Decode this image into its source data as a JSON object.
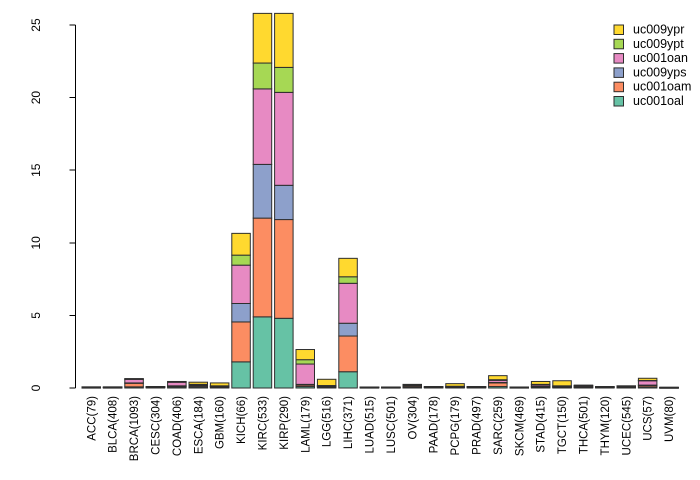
{
  "figure": {
    "background": "#ffffff",
    "bar_border_color": "#2e2e2e",
    "axis_color": "#000000"
  },
  "chart_data": {
    "type": "bar",
    "stacked": true,
    "title": "",
    "xlabel": "",
    "ylabel": "",
    "ylim": [
      0,
      26
    ],
    "yticks": [
      0,
      5,
      10,
      15,
      20,
      25
    ],
    "grid": false,
    "legend_position": "top-right",
    "categories": [
      "ACC(79)",
      "BLCA(408)",
      "BRCA(1093)",
      "CESC(304)",
      "COAD(406)",
      "ESCA(184)",
      "GBM(160)",
      "KICH(66)",
      "KIRC(533)",
      "KIRP(290)",
      "LAML(179)",
      "LGG(516)",
      "LIHC(371)",
      "LUAD(515)",
      "LUSC(501)",
      "OV(304)",
      "PAAD(178)",
      "PCPG(179)",
      "PRAD(497)",
      "SARC(259)",
      "SKCM(469)",
      "STAD(415)",
      "TGCT(150)",
      "THCA(501)",
      "THYM(120)",
      "UCEC(545)",
      "UCS(57)",
      "UVM(80)"
    ],
    "series": [
      {
        "name": "uc001oal",
        "color": "#66C2A5",
        "values": [
          0.02,
          0.02,
          0.08,
          0.03,
          0.08,
          0.08,
          0.05,
          1.8,
          4.9,
          4.8,
          0.1,
          0.05,
          1.12,
          0.02,
          0.02,
          0.05,
          0.03,
          0.03,
          0.03,
          0.1,
          0.02,
          0.05,
          0.04,
          0.04,
          0.03,
          0.03,
          0.08,
          0.01
        ]
      },
      {
        "name": "uc001oam",
        "color": "#FC8D62",
        "values": [
          0.02,
          0.02,
          0.25,
          0.03,
          0.05,
          0.08,
          0.04,
          2.75,
          6.8,
          6.8,
          0.1,
          0.05,
          2.46,
          0.02,
          0.02,
          0.08,
          0.03,
          0.03,
          0.03,
          0.25,
          0.02,
          0.05,
          0.04,
          0.03,
          0.03,
          0.03,
          0.1,
          0.01
        ]
      },
      {
        "name": "uc009yps",
        "color": "#8DA0CB",
        "values": [
          0.01,
          0.01,
          0.02,
          0.01,
          0.02,
          0.02,
          0.01,
          1.27,
          3.7,
          2.36,
          0.05,
          0.02,
          0.88,
          0.01,
          0.01,
          0.02,
          0.01,
          0.01,
          0.01,
          0.03,
          0.01,
          0.02,
          0.01,
          0.01,
          0.01,
          0.01,
          0.02,
          0.01
        ]
      },
      {
        "name": "uc001oan",
        "color": "#E78AC3",
        "values": [
          0.01,
          0.01,
          0.25,
          0.02,
          0.25,
          0.05,
          0.03,
          2.64,
          5.2,
          6.4,
          1.4,
          0.03,
          2.75,
          0.01,
          0.01,
          0.05,
          0.02,
          0.03,
          0.02,
          0.15,
          0.01,
          0.1,
          0.04,
          0.08,
          0.02,
          0.06,
          0.3,
          0.01
        ]
      },
      {
        "name": "uc009ypt",
        "color": "#A6D854",
        "values": [
          0.01,
          0.01,
          0.02,
          0.005,
          0.02,
          0.02,
          0.02,
          0.69,
          1.78,
          1.72,
          0.3,
          0.02,
          0.45,
          0.005,
          0.005,
          0.02,
          0.005,
          0.02,
          0.005,
          0.04,
          0.005,
          0.03,
          0.02,
          0.01,
          0.005,
          0.01,
          0.02,
          0.005
        ]
      },
      {
        "name": "uc009ypr",
        "color": "#FFD92F",
        "values": [
          0.01,
          0.01,
          0.03,
          0.005,
          0.03,
          0.15,
          0.2,
          1.5,
          3.42,
          3.72,
          0.7,
          0.43,
          1.27,
          0.005,
          0.005,
          0.03,
          0.005,
          0.18,
          0.005,
          0.28,
          0.005,
          0.2,
          0.35,
          0.03,
          0.005,
          0.01,
          0.15,
          0.005
        ]
      }
    ],
    "legend_order_top_to_bottom": [
      "uc009ypr",
      "uc009ypt",
      "uc001oan",
      "uc009yps",
      "uc001oam",
      "uc001oal"
    ]
  }
}
